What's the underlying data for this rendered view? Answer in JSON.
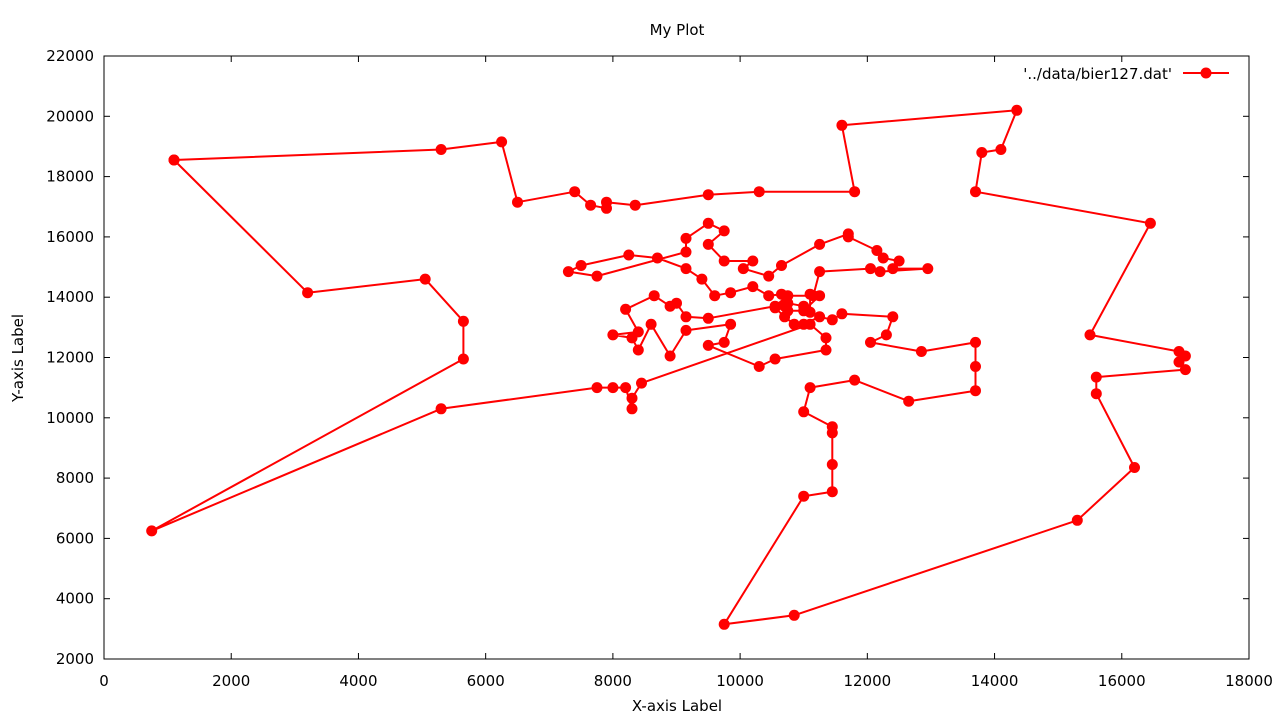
{
  "chart_data": {
    "type": "line",
    "title": "My Plot",
    "xlabel": "X-axis Label",
    "ylabel": "Y-axis Label",
    "xlim": [
      0,
      18000
    ],
    "ylim": [
      2000,
      22000
    ],
    "xticks": [
      0,
      2000,
      4000,
      6000,
      8000,
      10000,
      12000,
      14000,
      16000,
      18000
    ],
    "yticks": [
      2000,
      4000,
      6000,
      8000,
      10000,
      12000,
      14000,
      16000,
      18000,
      20000,
      22000
    ],
    "grid": false,
    "legend_position": "top-right",
    "series": [
      {
        "name": "'../data/bier127.dat'",
        "color": "#ff0000",
        "marker": "circle",
        "points": [
          [
            1100,
            18550
          ],
          [
            5300,
            18900
          ],
          [
            6250,
            19150
          ],
          [
            6500,
            17150
          ],
          [
            7400,
            17500
          ],
          [
            7650,
            17050
          ],
          [
            7900,
            16950
          ],
          [
            7900,
            17150
          ],
          [
            8350,
            17050
          ],
          [
            9500,
            17400
          ],
          [
            10300,
            17500
          ],
          [
            11800,
            17500
          ],
          [
            11600,
            19700
          ],
          [
            14350,
            20200
          ],
          [
            14100,
            18900
          ],
          [
            13800,
            18800
          ],
          [
            13700,
            17500
          ],
          [
            16450,
            16450
          ],
          [
            15500,
            12750
          ],
          [
            16900,
            12200
          ],
          [
            17000,
            12050
          ],
          [
            16900,
            11850
          ],
          [
            17000,
            11600
          ],
          [
            15600,
            11350
          ],
          [
            15600,
            10800
          ],
          [
            16200,
            8350
          ],
          [
            15300,
            6600
          ],
          [
            10850,
            3450
          ],
          [
            9750,
            3150
          ],
          [
            11000,
            7400
          ],
          [
            11450,
            7550
          ],
          [
            11450,
            8450
          ],
          [
            11450,
            9500
          ],
          [
            11450,
            9700
          ],
          [
            11000,
            10200
          ],
          [
            11100,
            11000
          ],
          [
            11800,
            11250
          ],
          [
            12650,
            10550
          ],
          [
            13700,
            10900
          ],
          [
            13700,
            11700
          ],
          [
            13700,
            12500
          ],
          [
            12850,
            12200
          ],
          [
            12050,
            12500
          ],
          [
            12300,
            12750
          ],
          [
            12400,
            13350
          ],
          [
            11600,
            13450
          ],
          [
            11450,
            13250
          ],
          [
            11250,
            13350
          ],
          [
            11000,
            13100
          ],
          [
            10850,
            13100
          ],
          [
            10700,
            13350
          ],
          [
            10550,
            13650
          ],
          [
            10750,
            13800
          ],
          [
            11000,
            13700
          ],
          [
            11100,
            13500
          ],
          [
            11100,
            14100
          ],
          [
            11250,
            14050
          ],
          [
            11000,
            13550
          ],
          [
            10750,
            13550
          ],
          [
            10700,
            13700
          ],
          [
            10650,
            14100
          ],
          [
            10450,
            14050
          ],
          [
            10200,
            14350
          ],
          [
            9850,
            14150
          ],
          [
            9600,
            14050
          ],
          [
            9400,
            14600
          ],
          [
            9150,
            14950
          ],
          [
            8700,
            15300
          ],
          [
            8250,
            15400
          ],
          [
            7500,
            15050
          ],
          [
            7300,
            14850
          ],
          [
            7750,
            14700
          ],
          [
            9150,
            15500
          ],
          [
            9150,
            15950
          ],
          [
            9500,
            16450
          ],
          [
            9750,
            16200
          ],
          [
            9500,
            15750
          ],
          [
            9750,
            15200
          ],
          [
            10200,
            15200
          ],
          [
            10050,
            14950
          ],
          [
            10450,
            14700
          ],
          [
            10650,
            15050
          ],
          [
            11250,
            15750
          ],
          [
            11700,
            16100
          ],
          [
            11700,
            16000
          ],
          [
            12150,
            15550
          ],
          [
            12250,
            15300
          ],
          [
            12500,
            15200
          ],
          [
            12400,
            14950
          ],
          [
            12950,
            14950
          ],
          [
            12200,
            14850
          ],
          [
            12050,
            14950
          ],
          [
            11250,
            14850
          ],
          [
            11150,
            14050
          ],
          [
            10750,
            14050
          ],
          [
            10550,
            13700
          ],
          [
            9500,
            13300
          ],
          [
            9150,
            13350
          ],
          [
            9000,
            13800
          ],
          [
            8900,
            13700
          ],
          [
            8650,
            14050
          ],
          [
            8200,
            13600
          ],
          [
            8400,
            12850
          ],
          [
            8000,
            12750
          ],
          [
            8300,
            12650
          ],
          [
            8400,
            12250
          ],
          [
            8600,
            13100
          ],
          [
            8900,
            12050
          ],
          [
            9150,
            12900
          ],
          [
            9850,
            13100
          ],
          [
            9750,
            12500
          ],
          [
            9500,
            12400
          ],
          [
            10300,
            11700
          ],
          [
            10550,
            11950
          ],
          [
            11350,
            12250
          ],
          [
            11350,
            12650
          ],
          [
            11100,
            13100
          ],
          [
            8450,
            11150
          ],
          [
            8300,
            10650
          ],
          [
            8300,
            10300
          ],
          [
            8200,
            11000
          ],
          [
            8000,
            11000
          ],
          [
            7750,
            11000
          ],
          [
            5300,
            10300
          ],
          [
            750,
            6250
          ],
          [
            5650,
            11950
          ],
          [
            5650,
            13200
          ],
          [
            5050,
            14600
          ],
          [
            3200,
            14150
          ],
          [
            1100,
            18550
          ]
        ]
      }
    ]
  }
}
